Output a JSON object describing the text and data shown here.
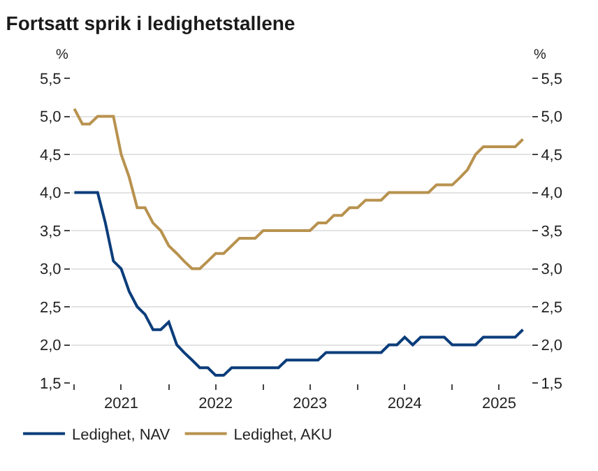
{
  "chart_data": {
    "type": "line",
    "title": "Fortsatt sprik i ledighetstallene",
    "ylabel": "%",
    "y2label": "%",
    "x": [
      "2021-01",
      "2021-02",
      "2021-03",
      "2021-04",
      "2021-05",
      "2021-06",
      "2021-07",
      "2021-08",
      "2021-09",
      "2021-10",
      "2021-11",
      "2021-12",
      "2022-01",
      "2022-02",
      "2022-03",
      "2022-04",
      "2022-05",
      "2022-06",
      "2022-07",
      "2022-08",
      "2022-09",
      "2022-10",
      "2022-11",
      "2022-12",
      "2023-01",
      "2023-02",
      "2023-03",
      "2023-04",
      "2023-05",
      "2023-06",
      "2023-07",
      "2023-08",
      "2023-09",
      "2023-10",
      "2023-11",
      "2023-12",
      "2024-01",
      "2024-02",
      "2024-03",
      "2024-04",
      "2024-05",
      "2024-06",
      "2024-07",
      "2024-08",
      "2024-09",
      "2024-10",
      "2024-11",
      "2024-12",
      "2025-01",
      "2025-02",
      "2025-03",
      "2025-04",
      "2025-05",
      "2025-06",
      "2025-07",
      "2025-08",
      "2025-09",
      "2025-10"
    ],
    "series": [
      {
        "name": "Ledighet, NAV",
        "color": "#0b3d7a",
        "values": [
          4.0,
          4.0,
          4.0,
          4.0,
          3.6,
          3.1,
          3.0,
          2.7,
          2.5,
          2.4,
          2.2,
          2.2,
          2.3,
          2.0,
          1.9,
          1.8,
          1.7,
          1.7,
          1.6,
          1.6,
          1.7,
          1.7,
          1.7,
          1.7,
          1.7,
          1.7,
          1.7,
          1.8,
          1.8,
          1.8,
          1.8,
          1.8,
          1.9,
          1.9,
          1.9,
          1.9,
          1.9,
          1.9,
          1.9,
          1.9,
          2.0,
          2.0,
          2.1,
          2.0,
          2.1,
          2.1,
          2.1,
          2.1,
          2.0,
          2.0,
          2.0,
          2.0,
          2.1,
          2.1,
          2.1,
          2.1,
          2.1,
          2.2
        ]
      },
      {
        "name": "Ledighet, AKU",
        "color": "#b8924f",
        "values": [
          5.1,
          4.9,
          4.9,
          5.0,
          5.0,
          5.0,
          4.5,
          4.2,
          3.8,
          3.8,
          3.6,
          3.5,
          3.3,
          3.2,
          3.1,
          3.0,
          3.0,
          3.1,
          3.2,
          3.2,
          3.3,
          3.4,
          3.4,
          3.4,
          3.5,
          3.5,
          3.5,
          3.5,
          3.5,
          3.5,
          3.5,
          3.6,
          3.6,
          3.7,
          3.7,
          3.8,
          3.8,
          3.9,
          3.9,
          3.9,
          4.0,
          4.0,
          4.0,
          4.0,
          4.0,
          4.0,
          4.1,
          4.1,
          4.1,
          4.2,
          4.3,
          4.5,
          4.6,
          4.6,
          4.6,
          4.6,
          4.6,
          4.7
        ]
      }
    ],
    "xlim": [
      "2020-12-20",
      "2025-11-01"
    ],
    "xticks": [
      {
        "value": "2021-01-01",
        "label": null
      },
      {
        "value": "2021-07-01",
        "label": "2021"
      },
      {
        "value": "2022-01-01",
        "label": null
      },
      {
        "value": "2022-07-01",
        "label": "2022"
      },
      {
        "value": "2023-01-01",
        "label": null
      },
      {
        "value": "2023-07-01",
        "label": "2023"
      },
      {
        "value": "2024-01-01",
        "label": null
      },
      {
        "value": "2024-07-01",
        "label": "2024"
      },
      {
        "value": "2025-01-01",
        "label": null
      },
      {
        "value": "2025-07-01",
        "label": "2025"
      }
    ],
    "ylim": [
      1.5,
      5.5
    ],
    "yticks": [
      {
        "value": 1.5,
        "label": "1,5"
      },
      {
        "value": 2.0,
        "label": "2,0"
      },
      {
        "value": 2.5,
        "label": "2,5"
      },
      {
        "value": 3.0,
        "label": "3,0"
      },
      {
        "value": 3.5,
        "label": "3,5"
      },
      {
        "value": 4.0,
        "label": "4,0"
      },
      {
        "value": 4.5,
        "label": "4,5"
      },
      {
        "value": 5.0,
        "label": "5,0"
      },
      {
        "value": 5.5,
        "label": "5,5"
      }
    ],
    "y2lim": [
      1.5,
      5.5
    ],
    "y2ticks": [
      {
        "value": 1.5,
        "label": "1,5"
      },
      {
        "value": 2.0,
        "label": "2,0"
      },
      {
        "value": 2.5,
        "label": "2,5"
      },
      {
        "value": 3.0,
        "label": "3,0"
      },
      {
        "value": 3.5,
        "label": "3,5"
      },
      {
        "value": 4.0,
        "label": "4,0"
      },
      {
        "value": 4.5,
        "label": "4,5"
      },
      {
        "value": 5.0,
        "label": "5,0"
      },
      {
        "value": 5.5,
        "label": "5,5"
      }
    ],
    "grid": "y",
    "legend": "bottom left",
    "marker": "none",
    "line_style": "solid"
  }
}
